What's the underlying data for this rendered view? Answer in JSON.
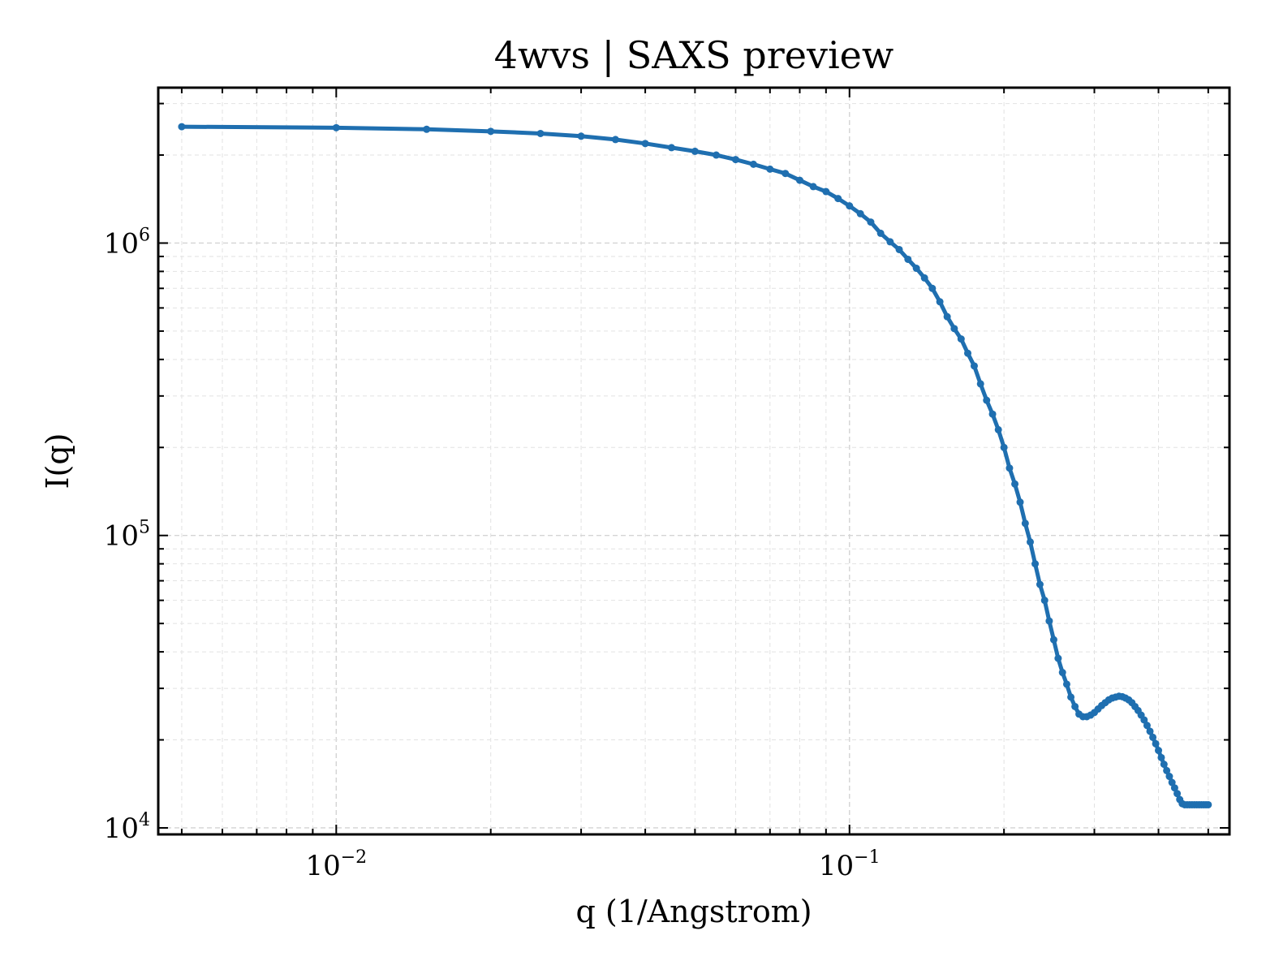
{
  "chart_data": {
    "type": "line",
    "title": "4wvs | SAXS preview",
    "xlabel": "q (1/Angstrom)",
    "ylabel": "I(q)",
    "xscale": "log",
    "yscale": "log",
    "xlim": [
      0.0045,
      0.55
    ],
    "ylim": [
      9500,
      3400000
    ],
    "x_ticks": [
      {
        "value": 0.01,
        "base": "10",
        "exp": "−2"
      },
      {
        "value": 0.1,
        "base": "10",
        "exp": "−1"
      }
    ],
    "y_ticks": [
      {
        "value": 10000,
        "base": "10",
        "exp": "4"
      },
      {
        "value": 100000,
        "base": "10",
        "exp": "5"
      },
      {
        "value": 1000000,
        "base": "10",
        "exp": "6"
      }
    ],
    "grid": true,
    "color": "#1f6fb0",
    "series": [
      {
        "x": [
          0.005,
          0.01,
          0.015,
          0.02,
          0.025,
          0.03,
          0.035,
          0.04,
          0.045,
          0.05,
          0.055,
          0.06,
          0.065,
          0.07,
          0.075,
          0.08,
          0.085,
          0.09,
          0.095,
          0.1,
          0.105,
          0.11,
          0.115,
          0.12,
          0.125,
          0.13,
          0.135,
          0.14,
          0.145,
          0.15,
          0.155,
          0.16,
          0.165,
          0.17,
          0.175,
          0.18,
          0.185,
          0.19,
          0.195,
          0.2,
          0.205,
          0.21,
          0.215,
          0.22,
          0.225,
          0.23,
          0.235,
          0.24,
          0.245,
          0.25,
          0.255,
          0.26,
          0.265,
          0.27,
          0.275,
          0.28,
          0.285,
          0.29,
          0.295,
          0.3,
          0.305,
          0.31,
          0.315,
          0.32,
          0.325,
          0.33,
          0.335,
          0.34,
          0.345,
          0.35,
          0.355,
          0.36,
          0.365,
          0.37,
          0.375,
          0.38,
          0.385,
          0.39,
          0.395,
          0.4,
          0.405,
          0.41,
          0.415,
          0.42,
          0.425,
          0.43,
          0.435,
          0.44,
          0.445,
          0.45,
          0.455,
          0.46,
          0.465,
          0.47,
          0.475,
          0.48,
          0.485,
          0.49,
          0.495,
          0.5
        ],
        "y": [
          2500000,
          2480000,
          2450000,
          2410000,
          2370000,
          2320000,
          2260000,
          2190000,
          2120000,
          2060000,
          2000000,
          1930000,
          1860000,
          1790000,
          1730000,
          1640000,
          1560000,
          1500000,
          1420000,
          1340000,
          1260000,
          1180000,
          1080000,
          1010000,
          950000,
          880000,
          820000,
          760000,
          700000,
          630000,
          560000,
          510000,
          470000,
          420000,
          380000,
          330000,
          290000,
          260000,
          230000,
          200000,
          170000,
          150000,
          130000,
          110000,
          95000,
          80000,
          68000,
          60000,
          51000,
          44000,
          38000,
          34000,
          31000,
          28000,
          26000,
          24500,
          24000,
          24000,
          24300,
          24800,
          25500,
          26200,
          26800,
          27400,
          27800,
          28000,
          28200,
          28100,
          27800,
          27400,
          26800,
          26000,
          25200,
          24300,
          23400,
          22400,
          21400,
          20400,
          19400,
          18400,
          17400,
          16500,
          15700,
          15000,
          14300,
          13700,
          13100,
          12500,
          12100,
          12000,
          12000,
          12000,
          12000,
          12000,
          12000,
          12000,
          12000,
          12000,
          12000,
          12000
        ]
      }
    ]
  }
}
